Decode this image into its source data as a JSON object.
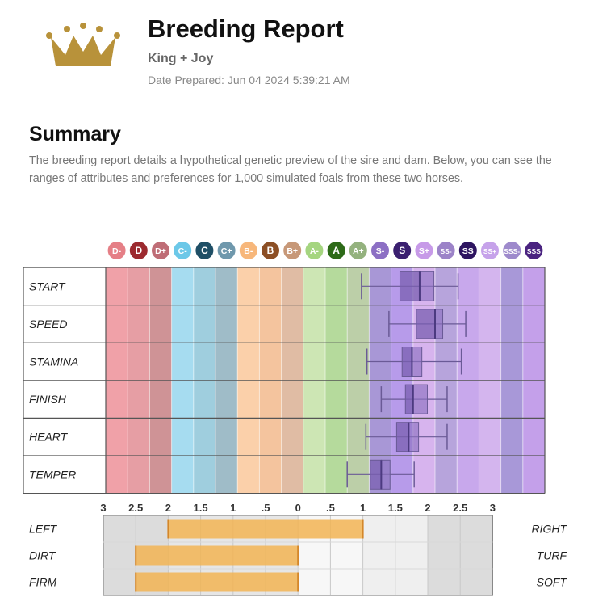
{
  "header": {
    "logo_icon": "crown-icon",
    "logo_color": "#b8923a",
    "title": "Breeding Report",
    "subtitle": "King + Joy",
    "date_prepared": "Date Prepared: Jun 04 2024 5:39:21 AM"
  },
  "summary": {
    "heading": "Summary",
    "text": "The breeding report details a hypothetical genetic preview of the sire and dam. Below, you can see the ranges of attributes and preferences for 1,000 simulated foals from these two horses."
  },
  "chart_data": [
    {
      "type": "boxplot",
      "grades": [
        {
          "label": "D-",
          "color": "#e57f86",
          "band": "#f0a1a8"
        },
        {
          "label": "D",
          "color": "#9c2a2f",
          "band": "#e69ea4"
        },
        {
          "label": "D+",
          "color": "#bf6d76",
          "band": "#cf9396"
        },
        {
          "label": "C-",
          "color": "#6cc8e8",
          "band": "#a6dcf0"
        },
        {
          "label": "C",
          "color": "#1f4f66",
          "band": "#9fcede"
        },
        {
          "label": "C+",
          "color": "#6f98ac",
          "band": "#9fbcc8"
        },
        {
          "label": "B-",
          "color": "#f7b77b",
          "band": "#fbd0aa"
        },
        {
          "label": "B",
          "color": "#8c4f25",
          "band": "#f4c49e"
        },
        {
          "label": "B+",
          "color": "#c79878",
          "band": "#e0bca4"
        },
        {
          "label": "A-",
          "color": "#a5d580",
          "band": "#cde6b4"
        },
        {
          "label": "A",
          "color": "#2d6a18",
          "band": "#b5da9c"
        },
        {
          "label": "A+",
          "color": "#94b27e",
          "band": "#bccfa8"
        },
        {
          "label": "S-",
          "color": "#8c6fc4",
          "band": "#a897d6"
        },
        {
          "label": "S",
          "color": "#3b2070",
          "band": "#b79bea"
        },
        {
          "label": "S+",
          "color": "#c79ae8",
          "band": "#d7b4ee"
        },
        {
          "label": "SS-",
          "color": "#9c83c8",
          "band": "#b7a4dc"
        },
        {
          "label": "SS",
          "color": "#2e1560",
          "band": "#c8a8ec"
        },
        {
          "label": "SS+",
          "color": "#c6a2ea",
          "band": "#d4b5ee"
        },
        {
          "label": "SSS-",
          "color": "#9e8acc",
          "band": "#a898d8"
        },
        {
          "label": "SSS",
          "color": "#4a2380",
          "band": "#c4a0ea"
        }
      ],
      "attributes": [
        {
          "label": "START",
          "min": 11.65,
          "q1": 13.4,
          "median": 14.3,
          "q3": 14.95,
          "max": 16.05
        },
        {
          "label": "SPEED",
          "min": 12.9,
          "q1": 14.15,
          "median": 15.0,
          "q3": 15.35,
          "max": 16.4
        },
        {
          "label": "STAMINA",
          "min": 11.9,
          "q1": 13.5,
          "median": 13.95,
          "q3": 14.4,
          "max": 16.2
        },
        {
          "label": "FINISH",
          "min": 12.55,
          "q1": 13.65,
          "median": 14.0,
          "q3": 14.65,
          "max": 15.55
        },
        {
          "label": "HEART",
          "min": 11.85,
          "q1": 13.25,
          "median": 13.8,
          "q3": 14.25,
          "max": 15.55
        },
        {
          "label": "TEMPER",
          "min": 11.0,
          "q1": 12.05,
          "median": 12.55,
          "q3": 12.95,
          "max": 14.05
        }
      ]
    },
    {
      "type": "bar",
      "x_ticks": [
        "3",
        "2.5",
        "2",
        "1.5",
        "1",
        ".5",
        "0",
        ".5",
        "1",
        "1.5",
        "2",
        "2.5",
        "3"
      ],
      "xlim": [
        -3,
        3
      ],
      "bar_color": "#f2b454",
      "rows": [
        {
          "left_label": "LEFT",
          "right_label": "RIGHT",
          "from": -2.0,
          "to": 1.0
        },
        {
          "left_label": "DIRT",
          "right_label": "TURF",
          "from": -2.5,
          "to": 0.0
        },
        {
          "left_label": "FIRM",
          "right_label": "SOFT",
          "from": -2.5,
          "to": 0.0
        }
      ]
    }
  ]
}
